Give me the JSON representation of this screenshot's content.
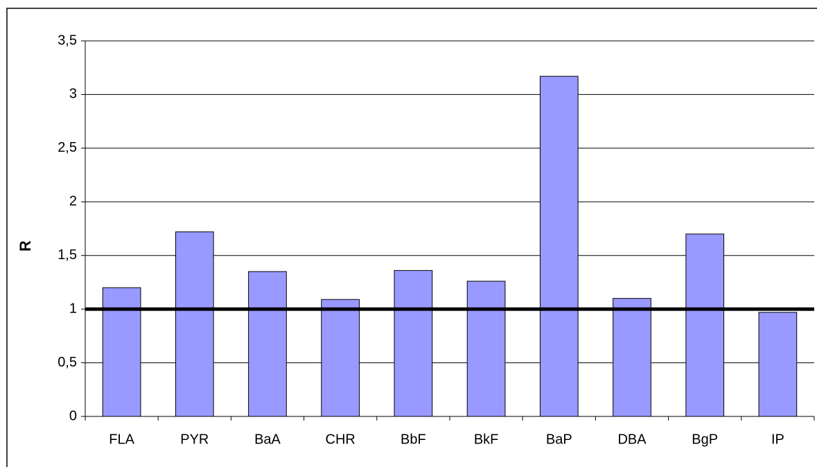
{
  "chart_data": {
    "type": "bar",
    "ylabel": "R",
    "categories": [
      "FLA",
      "PYR",
      "BaA",
      "CHR",
      "BbF",
      "BkF",
      "BaP",
      "DBA",
      "BgP",
      "IP"
    ],
    "values": [
      1.2,
      1.72,
      1.35,
      1.09,
      1.36,
      1.26,
      3.17,
      1.1,
      1.7,
      0.97
    ],
    "color": "#9999ff",
    "ylim": [
      0,
      3.5
    ],
    "yticks": [
      0,
      {
        "value": 0.5,
        "label": "0,5"
      },
      1,
      {
        "value": 1.5,
        "label": "1,5"
      },
      2,
      {
        "value": 2.5,
        "label": "2,5"
      },
      3,
      {
        "value": 3.5,
        "label": "3,5"
      }
    ],
    "grid": true,
    "reference_line": 1
  }
}
